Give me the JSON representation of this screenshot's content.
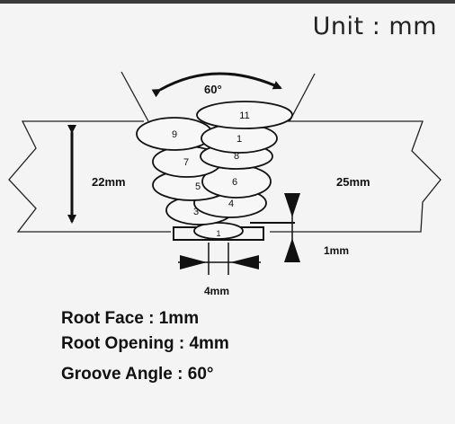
{
  "unit_label": "Unit : mm",
  "diagram": {
    "groove_angle_label": "60°",
    "left_plate_thickness": "22mm",
    "right_plate_thickness": "25mm",
    "root_face_dim": "1mm",
    "root_opening_dim": "4mm",
    "bead_numbers": [
      "11",
      "9",
      "1",
      "8",
      "7",
      "5",
      "6",
      "3",
      "4",
      "1"
    ]
  },
  "notes": {
    "root_face": "Root Face : 1mm",
    "root_opening": "Root Opening : 4mm",
    "groove_angle": "Groove Angle  : 60°"
  }
}
